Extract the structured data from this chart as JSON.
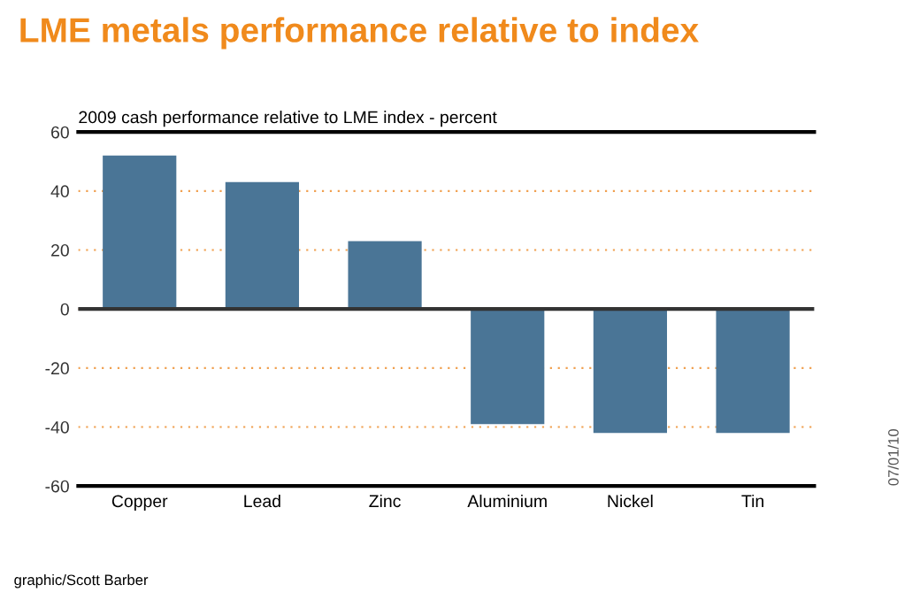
{
  "chart_data": {
    "type": "bar",
    "title": "LME metals performance relative to index",
    "subtitle": "2009 cash performance relative to LME index - percent",
    "categories": [
      "Copper",
      "Lead",
      "Zinc",
      "Aluminium",
      "Nickel",
      "Tin"
    ],
    "values": [
      52,
      43,
      23,
      -39,
      -42,
      -42
    ],
    "color": "#4a7596",
    "ylim": [
      -60,
      60
    ],
    "yticks": [
      -60,
      -40,
      -20,
      0,
      20,
      40,
      60
    ],
    "grid": "y",
    "annotations": [
      "graphic/Scott Barber",
      "07/01/10"
    ]
  }
}
